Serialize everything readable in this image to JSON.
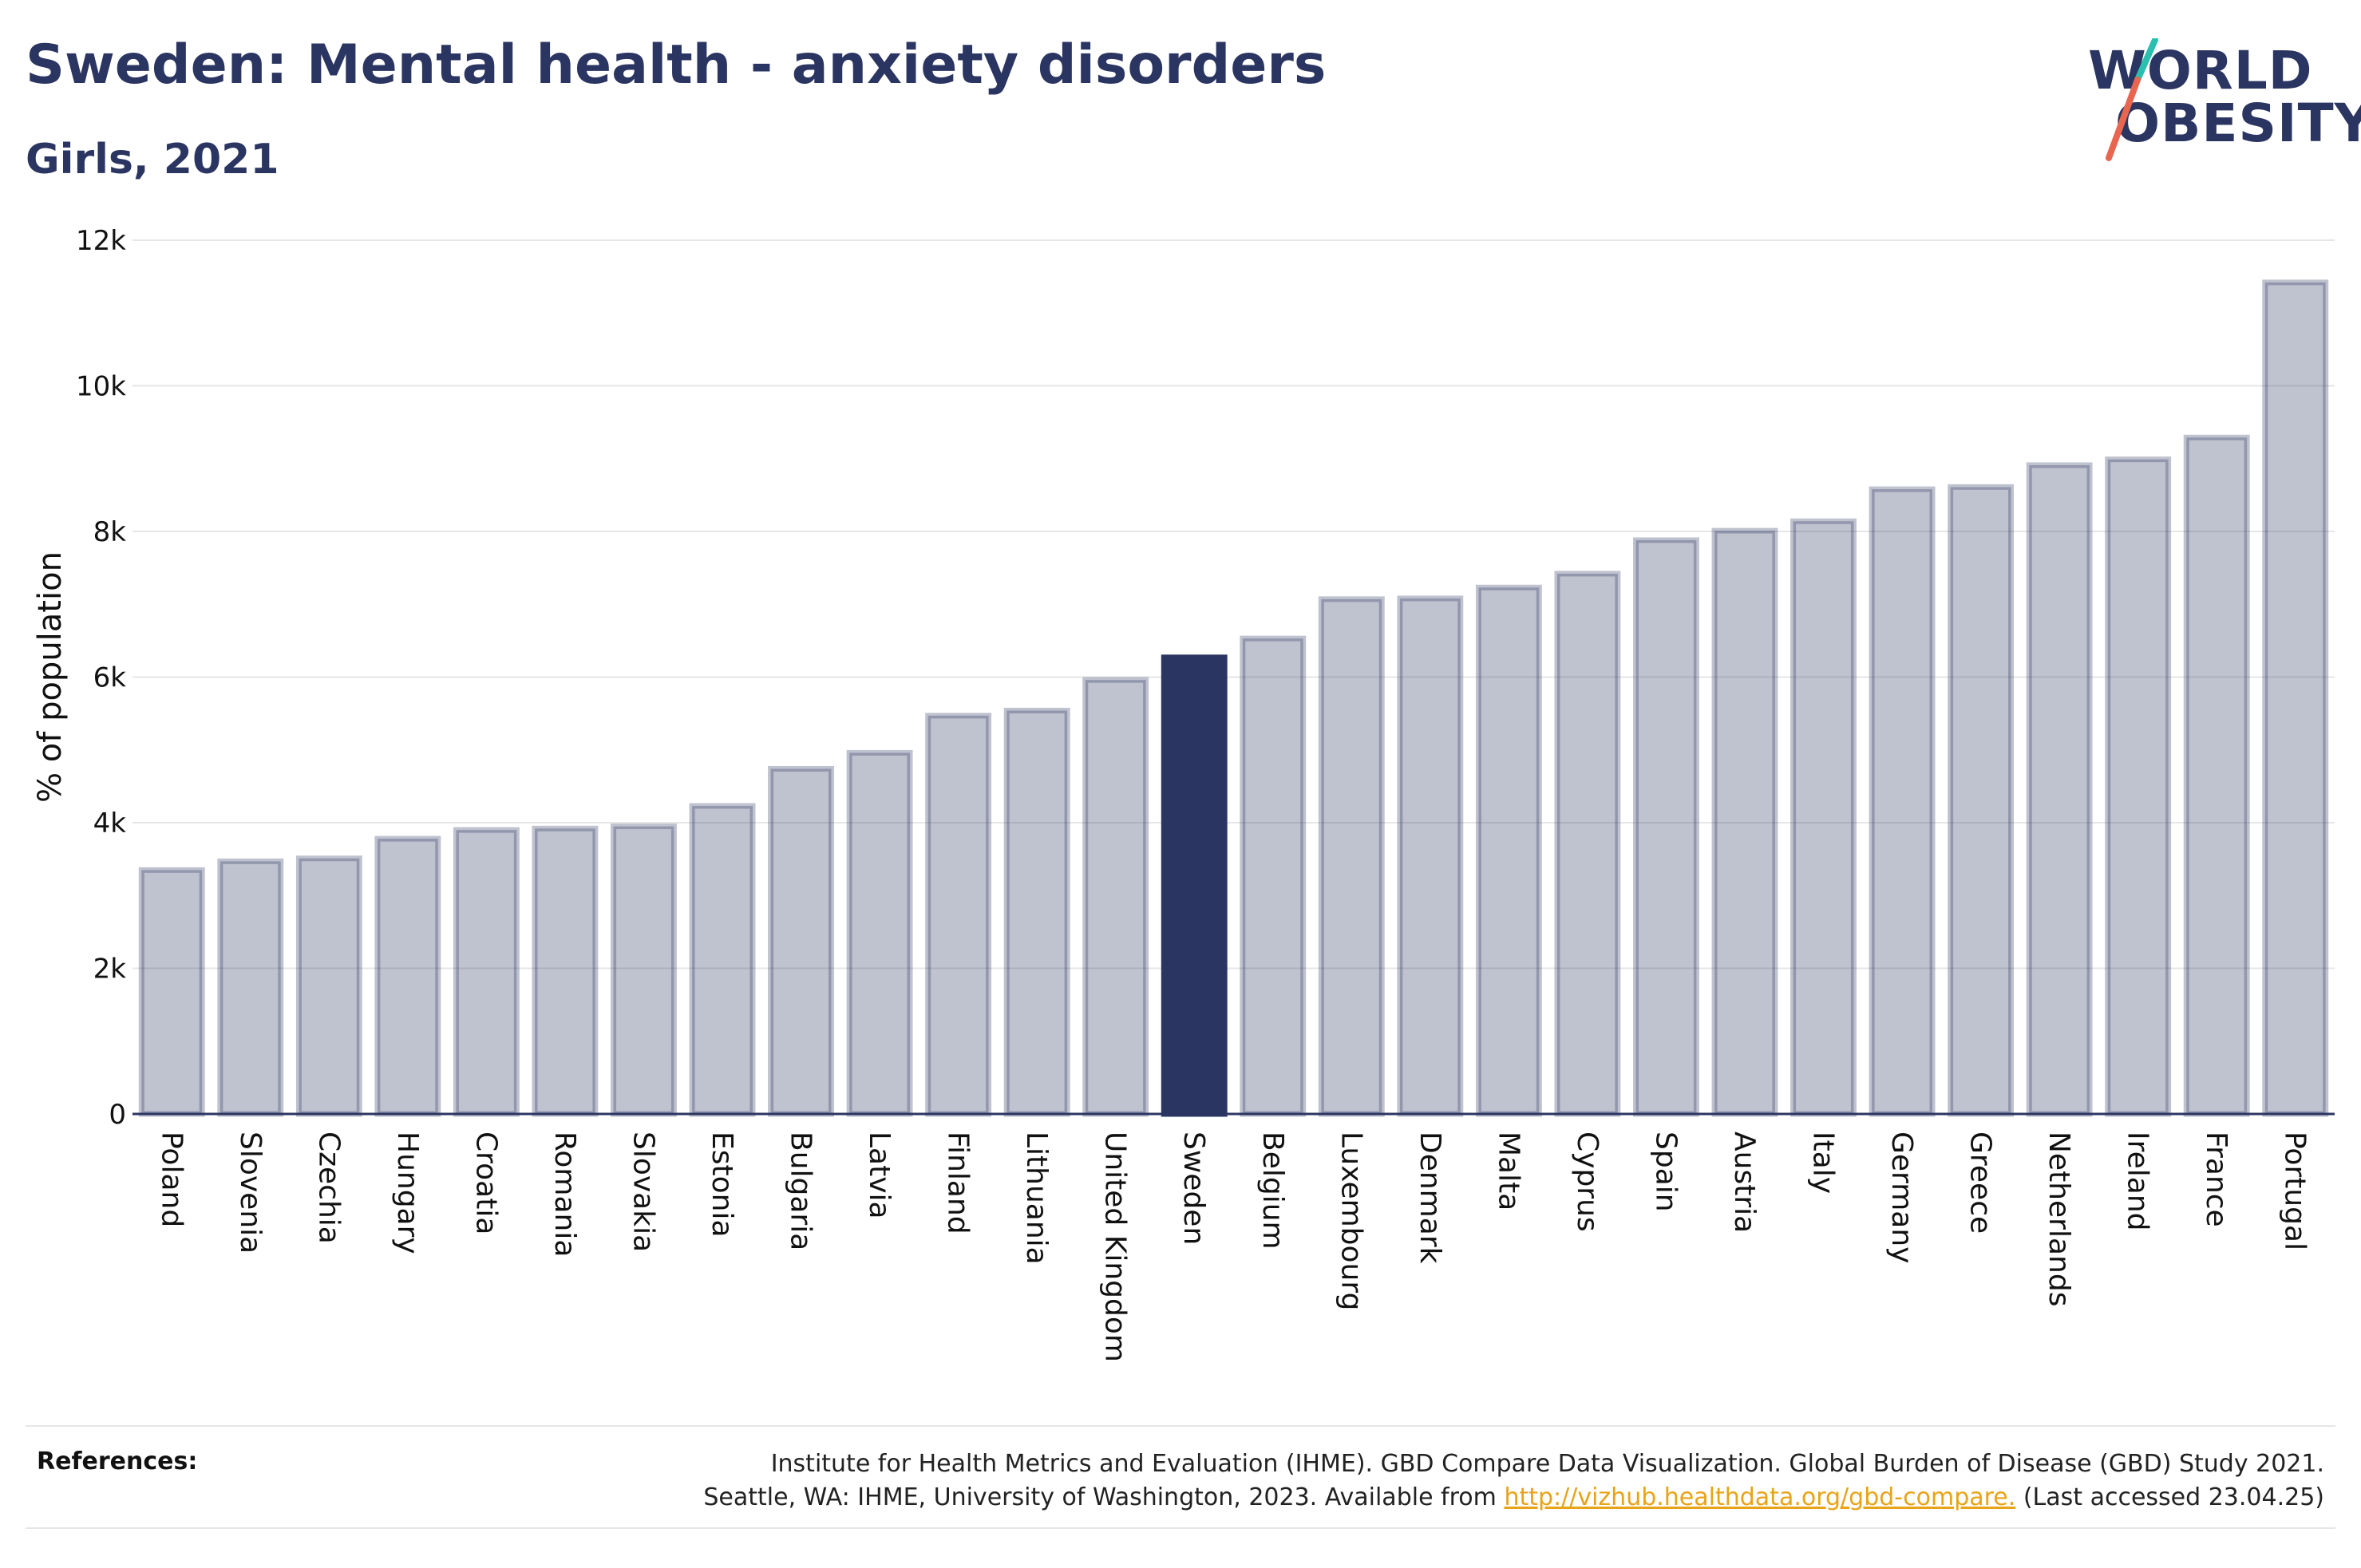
{
  "header": {
    "title": "Sweden: Mental health - anxiety disorders",
    "subtitle": "Girls, 2021"
  },
  "logo": {
    "line1": "WORLD",
    "line2": "OBESITY",
    "accent_colors": [
      "#2bbfb0",
      "#e8664f"
    ]
  },
  "colors": {
    "bar": "#2b3561",
    "bar_highlight": "#2b3561",
    "axis_text": "#111111"
  },
  "chart_data": {
    "type": "bar",
    "title": "Sweden: Mental health - anxiety disorders",
    "subtitle": "Girls, 2021",
    "xlabel": "",
    "ylabel": "% of population",
    "ylim": [
      0,
      12000
    ],
    "yticks": [
      0,
      2000,
      4000,
      6000,
      8000,
      10000,
      12000
    ],
    "ytick_labels": [
      "0",
      "2k",
      "4k",
      "6k",
      "8k",
      "10k",
      "12k"
    ],
    "grid": true,
    "highlight": "Sweden",
    "categories": [
      "Poland",
      "Slovenia",
      "Czechia",
      "Hungary",
      "Croatia",
      "Romania",
      "Slovakia",
      "Estonia",
      "Bulgaria",
      "Latvia",
      "Finland",
      "Lithuania",
      "United Kingdom",
      "Sweden",
      "Belgium",
      "Luxembourg",
      "Denmark",
      "Malta",
      "Cyprus",
      "Spain",
      "Austria",
      "Italy",
      "Germany",
      "Greece",
      "Netherlands",
      "Ireland",
      "France",
      "Portugal"
    ],
    "values": [
      3350,
      3470,
      3510,
      3780,
      3900,
      3920,
      3950,
      4230,
      4740,
      4960,
      5470,
      5540,
      5960,
      6270,
      6530,
      7070,
      7080,
      7230,
      7420,
      7880,
      8010,
      8140,
      8580,
      8610,
      8910,
      8990,
      9290,
      11420
    ]
  },
  "references": {
    "label": "References:",
    "line1": "Institute for Health Metrics and Evaluation (IHME). GBD Compare Data Visualization. Global Burden of Disease (GBD) Study 2021.",
    "line2_prefix": "Seattle, WA: IHME, University of Washington, 2023. Available from",
    "link": "http://vizhub.healthdata.org/gbd-compare.",
    "line2_suffix": "(Last accessed 23.04.25)"
  }
}
